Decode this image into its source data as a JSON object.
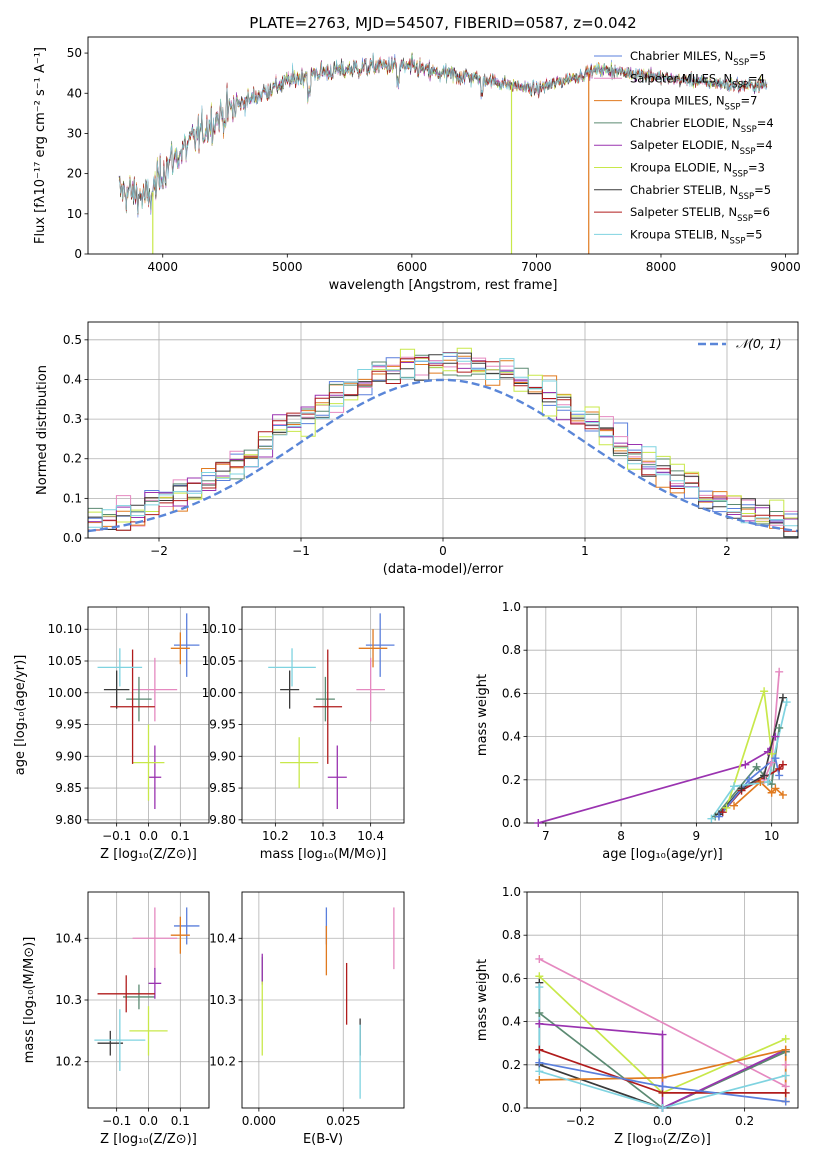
{
  "colors": {
    "chabrier_miles": "#5a7fdc",
    "salpeter_miles": "#e589c0",
    "kroupa_miles": "#e07a1f",
    "chabrier_elodie": "#5b8a72",
    "salpeter_elodie": "#9a33b0",
    "kroupa_elodie": "#c8e84a",
    "chabrier_stelib": "#3a3a3a",
    "salpeter_stelib": "#b01c1c",
    "kroupa_stelib": "#7fd3e0",
    "normal": "#5a86d8"
  },
  "chart_data": [
    {
      "id": "spectrum",
      "type": "line",
      "title": "PLATE=2763, MJD=54507, FIBERID=0587, z=0.042",
      "xlabel": "wavelength [Angstrom, rest frame]",
      "ylabel": "Flux [fλ10⁻¹⁷ erg cm⁻² s⁻¹ A⁻¹]",
      "xlim": [
        3400,
        9100
      ],
      "ylim": [
        0,
        54
      ],
      "xticks": [
        4000,
        5000,
        6000,
        7000,
        8000,
        9000
      ],
      "yticks": [
        0,
        10,
        20,
        30,
        40,
        50
      ],
      "legend": "upper-right",
      "continuum": [
        [
          3650,
          16
        ],
        [
          3900,
          14
        ],
        [
          4000,
          21
        ],
        [
          4200,
          27
        ],
        [
          4400,
          33
        ],
        [
          4600,
          37
        ],
        [
          4800,
          40
        ],
        [
          5000,
          43
        ],
        [
          5200,
          45
        ],
        [
          5500,
          46
        ],
        [
          5800,
          47
        ],
        [
          6000,
          46.5
        ],
        [
          6200,
          45
        ],
        [
          6500,
          44
        ],
        [
          6800,
          42
        ],
        [
          7000,
          41
        ],
        [
          7200,
          43
        ],
        [
          7500,
          46
        ],
        [
          7800,
          45
        ],
        [
          8000,
          44
        ],
        [
          8300,
          43
        ],
        [
          8600,
          42
        ],
        [
          8850,
          42
        ]
      ],
      "series": [
        {
          "name": "Chabrier MILES, N_SSP=5",
          "color_key": "chabrier_miles"
        },
        {
          "name": "Salpeter MILES, N_SSP=4",
          "color_key": "salpeter_miles"
        },
        {
          "name": "Kroupa MILES, N_SSP=7",
          "color_key": "kroupa_miles"
        },
        {
          "name": "Chabrier ELODIE, N_SSP=4",
          "color_key": "chabrier_elodie"
        },
        {
          "name": "Salpeter ELODIE, N_SSP=4",
          "color_key": "salpeter_elodie"
        },
        {
          "name": "Kroupa ELODIE, N_SSP=3",
          "color_key": "kroupa_elodie"
        },
        {
          "name": "Chabrier STELIB, N_SSP=5",
          "color_key": "chabrier_stelib"
        },
        {
          "name": "Salpeter STELIB, N_SSP=6",
          "color_key": "salpeter_stelib"
        },
        {
          "name": "Kroupa STELIB, N_SSP=5",
          "color_key": "kroupa_stelib"
        }
      ],
      "drops": [
        {
          "x": 3920,
          "color_key": "kroupa_elodie"
        },
        {
          "x": 6800,
          "color_key": "kroupa_elodie"
        },
        {
          "x": 7420,
          "color_key": "kroupa_miles"
        }
      ]
    },
    {
      "id": "residuals",
      "type": "histogram",
      "xlabel": "(data-model)/error",
      "ylabel": "Normed distribution",
      "xlim": [
        -2.5,
        2.5
      ],
      "ylim": [
        0,
        0.545
      ],
      "xticks": [
        -2,
        -1,
        0,
        1,
        2
      ],
      "yticks": [
        0.0,
        0.1,
        0.2,
        0.3,
        0.4,
        0.5
      ],
      "bin_width": 0.1,
      "grid": true,
      "legend": "upper-right",
      "normal_label": "𝒩(0, 1)"
    },
    {
      "id": "age_vs_Z",
      "type": "errorbar",
      "xlabel": "Z [log₁₀(Z/Z⊙)]",
      "ylabel": "age  [log₁₀(age/yr)]",
      "xlim": [
        -0.19,
        0.19
      ],
      "ylim": [
        9.795,
        10.135
      ],
      "xticks": [
        -0.1,
        0.0,
        0.1
      ],
      "yticks": [
        9.8,
        9.85,
        9.9,
        9.95,
        10.0,
        10.05,
        10.1
      ],
      "grid": true,
      "points": [
        {
          "color_key": "chabrier_miles",
          "x": 0.12,
          "xerr": 0.04,
          "y": 10.075,
          "yerr": 0.05
        },
        {
          "color_key": "salpeter_miles",
          "x": 0.02,
          "xerr": 0.07,
          "y": 10.005,
          "yerr": 0.05
        },
        {
          "color_key": "kroupa_miles",
          "x": 0.1,
          "xerr": 0.03,
          "y": 10.07,
          "yerr": 0.025
        },
        {
          "color_key": "chabrier_elodie",
          "x": -0.03,
          "xerr": 0.04,
          "y": 9.99,
          "yerr": 0.035
        },
        {
          "color_key": "salpeter_elodie",
          "x": 0.02,
          "xerr": 0.02,
          "y": 9.867,
          "yerr": 0.05
        },
        {
          "color_key": "kroupa_elodie",
          "x": 0.0,
          "xerr": 0.05,
          "y": 9.89,
          "yerr": 0.06
        },
        {
          "color_key": "chabrier_stelib",
          "x": -0.1,
          "xerr": 0.04,
          "y": 10.005,
          "yerr": 0.03
        },
        {
          "color_key": "salpeter_stelib",
          "x": -0.05,
          "xerr": 0.07,
          "y": 9.978,
          "yerr": 0.09
        },
        {
          "color_key": "kroupa_stelib",
          "x": -0.09,
          "xerr": 0.07,
          "y": 10.04,
          "yerr": 0.03
        }
      ]
    },
    {
      "id": "age_vs_mass",
      "type": "errorbar",
      "xlabel": "mass [log₁₀(M/M⊙)]",
      "ylabel": "",
      "xlim": [
        10.13,
        10.47
      ],
      "ylim": [
        9.795,
        10.135
      ],
      "xticks": [
        10.2,
        10.3,
        10.4
      ],
      "yticks": [
        9.8,
        9.85,
        9.9,
        9.95,
        10.0,
        10.05,
        10.1
      ],
      "grid": true,
      "points": [
        {
          "color_key": "chabrier_miles",
          "x": 10.42,
          "xerr": 0.03,
          "y": 10.075,
          "yerr": 0.05
        },
        {
          "color_key": "salpeter_miles",
          "x": 10.4,
          "xerr": 0.03,
          "y": 10.005,
          "yerr": 0.05
        },
        {
          "color_key": "kroupa_miles",
          "x": 10.405,
          "xerr": 0.03,
          "y": 10.07,
          "yerr": 0.03
        },
        {
          "color_key": "chabrier_elodie",
          "x": 10.305,
          "xerr": 0.02,
          "y": 9.99,
          "yerr": 0.035
        },
        {
          "color_key": "salpeter_elodie",
          "x": 10.33,
          "xerr": 0.02,
          "y": 9.867,
          "yerr": 0.05
        },
        {
          "color_key": "kroupa_elodie",
          "x": 10.25,
          "xerr": 0.04,
          "y": 9.89,
          "yerr": 0.04
        },
        {
          "color_key": "chabrier_stelib",
          "x": 10.23,
          "xerr": 0.02,
          "y": 10.005,
          "yerr": 0.03
        },
        {
          "color_key": "salpeter_stelib",
          "x": 10.31,
          "xerr": 0.03,
          "y": 9.978,
          "yerr": 0.09
        },
        {
          "color_key": "kroupa_stelib",
          "x": 10.235,
          "xerr": 0.05,
          "y": 10.04,
          "yerr": 0.03
        }
      ]
    },
    {
      "id": "weight_vs_age",
      "type": "line",
      "xlabel": "age  [log₁₀(age/yr)]",
      "ylabel": "mass weight",
      "xlim": [
        6.75,
        10.35
      ],
      "ylim": [
        0,
        1.0
      ],
      "xticks": [
        7,
        8,
        9,
        10
      ],
      "yticks": [
        0.0,
        0.2,
        0.4,
        0.6,
        0.8,
        1.0
      ],
      "grid": true,
      "series": [
        {
          "color_key": "salpeter_elodie",
          "x": [
            6.9,
            9.65,
            9.95,
            10.05
          ],
          "y": [
            0.0,
            0.27,
            0.33,
            0.4
          ]
        },
        {
          "color_key": "chabrier_elodie",
          "x": [
            9.25,
            9.8,
            10.0,
            10.1
          ],
          "y": [
            0.03,
            0.26,
            0.18,
            0.44
          ]
        },
        {
          "color_key": "salpeter_stelib",
          "x": [
            9.35,
            9.6,
            10.1,
            10.15
          ],
          "y": [
            0.05,
            0.15,
            0.25,
            0.27
          ]
        },
        {
          "color_key": "kroupa_elodie",
          "x": [
            9.4,
            9.9,
            10.0
          ],
          "y": [
            0.07,
            0.61,
            0.32
          ]
        },
        {
          "color_key": "salpeter_miles",
          "x": [
            9.9,
            10.0,
            10.1
          ],
          "y": [
            0.2,
            0.28,
            0.7
          ]
        },
        {
          "color_key": "kroupa_miles",
          "x": [
            9.5,
            9.85,
            10.0,
            10.05,
            10.15
          ],
          "y": [
            0.08,
            0.19,
            0.14,
            0.16,
            0.13
          ]
        },
        {
          "color_key": "chabrier_stelib",
          "x": [
            9.3,
            9.6,
            9.9,
            10.15
          ],
          "y": [
            0.04,
            0.16,
            0.22,
            0.58
          ]
        },
        {
          "color_key": "chabrier_miles",
          "x": [
            9.3,
            9.7,
            10.05,
            10.1
          ],
          "y": [
            0.03,
            0.2,
            0.3,
            0.22
          ]
        },
        {
          "color_key": "kroupa_stelib",
          "x": [
            9.2,
            9.5,
            9.95,
            10.2
          ],
          "y": [
            0.02,
            0.17,
            0.19,
            0.56
          ]
        }
      ]
    },
    {
      "id": "mass_vs_Z",
      "type": "errorbar",
      "xlabel": "Z [log₁₀(Z/Z⊙)]",
      "ylabel": "mass [log₁₀(M/M⊙)]",
      "xlim": [
        -0.19,
        0.19
      ],
      "ylim": [
        10.125,
        10.475
      ],
      "xticks": [
        -0.1,
        0.0,
        0.1
      ],
      "yticks": [
        10.2,
        10.3,
        10.4
      ],
      "grid": true,
      "points": [
        {
          "color_key": "chabrier_miles",
          "x": 0.12,
          "xerr": 0.04,
          "y": 10.42,
          "yerr": 0.03
        },
        {
          "color_key": "salpeter_miles",
          "x": 0.02,
          "xerr": 0.07,
          "y": 10.4,
          "yerr": 0.05
        },
        {
          "color_key": "kroupa_miles",
          "x": 0.1,
          "xerr": 0.03,
          "y": 10.405,
          "yerr": 0.03
        },
        {
          "color_key": "chabrier_elodie",
          "x": -0.03,
          "xerr": 0.05,
          "y": 10.305,
          "yerr": 0.02
        },
        {
          "color_key": "salpeter_elodie",
          "x": 0.02,
          "xerr": 0.02,
          "y": 10.327,
          "yerr": 0.025
        },
        {
          "color_key": "kroupa_elodie",
          "x": 0.0,
          "xerr": 0.06,
          "y": 10.25,
          "yerr": 0.04
        },
        {
          "color_key": "chabrier_stelib",
          "x": -0.12,
          "xerr": 0.04,
          "y": 10.23,
          "yerr": 0.02
        },
        {
          "color_key": "salpeter_stelib",
          "x": -0.07,
          "xerr": 0.09,
          "y": 10.31,
          "yerr": 0.03
        },
        {
          "color_key": "kroupa_stelib",
          "x": -0.09,
          "xerr": 0.08,
          "y": 10.235,
          "yerr": 0.05
        }
      ]
    },
    {
      "id": "mass_vs_ebv",
      "type": "errorbar",
      "xlabel": "E(B-V)",
      "ylabel": "",
      "xlim": [
        -0.005,
        0.043
      ],
      "ylim": [
        10.125,
        10.475
      ],
      "xticks": [
        0.0,
        0.025
      ],
      "yticks": [
        10.2,
        10.3,
        10.4
      ],
      "grid": true,
      "points": [
        {
          "color_key": "chabrier_miles",
          "x": 0.02,
          "xerr": 0,
          "y": 10.42,
          "yerr": 0.03
        },
        {
          "color_key": "salpeter_miles",
          "x": 0.04,
          "xerr": 0,
          "y": 10.4,
          "yerr": 0.05
        },
        {
          "color_key": "kroupa_miles",
          "x": 0.02,
          "xerr": 0,
          "y": 10.38,
          "yerr": 0.04
        },
        {
          "color_key": "chabrier_elodie",
          "x": 0.001,
          "xerr": 0,
          "y": 10.35,
          "yerr": 0.02
        },
        {
          "color_key": "salpeter_elodie",
          "x": 0.001,
          "xerr": 0,
          "y": 10.35,
          "yerr": 0.025
        },
        {
          "color_key": "kroupa_elodie",
          "x": 0.001,
          "xerr": 0,
          "y": 10.27,
          "yerr": 0.06
        },
        {
          "color_key": "chabrier_stelib",
          "x": 0.03,
          "xerr": 0,
          "y": 10.24,
          "yerr": 0.03
        },
        {
          "color_key": "salpeter_stelib",
          "x": 0.026,
          "xerr": 0,
          "y": 10.31,
          "yerr": 0.05
        },
        {
          "color_key": "kroupa_stelib",
          "x": 0.03,
          "xerr": 0,
          "y": 10.2,
          "yerr": 0.06
        }
      ]
    },
    {
      "id": "weight_vs_Z",
      "type": "line",
      "xlabel": "Z [log₁₀(Z/Z⊙)]",
      "ylabel": "mass weight",
      "xlim": [
        -0.33,
        0.33
      ],
      "ylim": [
        0,
        1.0
      ],
      "xticks": [
        -0.2,
        0.0,
        0.2
      ],
      "yticks": [
        0.0,
        0.2,
        0.4,
        0.6,
        0.8,
        1.0
      ],
      "grid": true,
      "series": [
        {
          "color_key": "salpeter_miles",
          "x": [
            -0.3,
            0.3,
            0.3
          ],
          "y": [
            0.69,
            0.1,
            0.2
          ]
        },
        {
          "color_key": "kroupa_elodie",
          "x": [
            -0.3,
            0.0,
            0.3
          ],
          "y": [
            0.61,
            0.07,
            0.32
          ]
        },
        {
          "color_key": "chabrier_stelib",
          "x": [
            -0.3,
            -0.3,
            0.0,
            0.3
          ],
          "y": [
            0.58,
            0.2,
            0.0,
            0.26
          ]
        },
        {
          "color_key": "chabrier_elodie",
          "x": [
            -0.3,
            0.0,
            0.3
          ],
          "y": [
            0.44,
            0.0,
            0.26
          ]
        },
        {
          "color_key": "salpeter_elodie",
          "x": [
            -0.3,
            0.0,
            0.0,
            0.3
          ],
          "y": [
            0.39,
            0.34,
            0.0,
            0.27
          ]
        },
        {
          "color_key": "salpeter_stelib",
          "x": [
            -0.3,
            0.0,
            0.3
          ],
          "y": [
            0.27,
            0.07,
            0.07
          ]
        },
        {
          "color_key": "kroupa_miles",
          "x": [
            -0.3,
            0.0,
            0.3,
            0.3
          ],
          "y": [
            0.13,
            0.14,
            0.27,
            0.03
          ]
        },
        {
          "color_key": "chabrier_miles",
          "x": [
            -0.3,
            0.0,
            0.3
          ],
          "y": [
            0.21,
            0.1,
            0.03
          ]
        },
        {
          "color_key": "kroupa_stelib",
          "x": [
            -0.3,
            -0.3,
            0.0,
            0.3
          ],
          "y": [
            0.56,
            0.17,
            0.0,
            0.15
          ]
        }
      ]
    }
  ]
}
